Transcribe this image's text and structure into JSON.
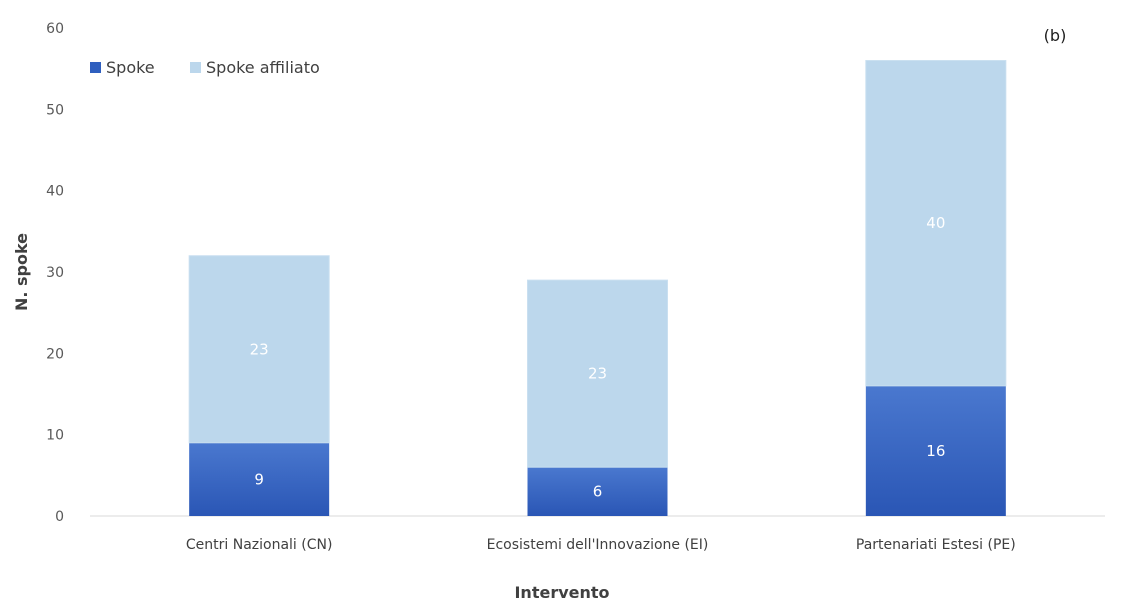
{
  "chart_data": {
    "type": "bar",
    "stacked": true,
    "panel_label": "(b)",
    "xlabel": "Intervento",
    "ylabel": "N. spoke",
    "ylim": [
      0,
      60
    ],
    "yticks": [
      0,
      10,
      20,
      30,
      40,
      50,
      60
    ],
    "categories": [
      "Centri Nazionali (CN)",
      "Ecosistemi dell'Innovazione (EI)",
      "Partenariati Estesi (PE)"
    ],
    "series": [
      {
        "name": "Spoke",
        "values": [
          9,
          6,
          16
        ],
        "color": "#2f5fbf"
      },
      {
        "name": "Spoke affiliato",
        "values": [
          23,
          23,
          40
        ],
        "color": "#bcd7ec"
      }
    ],
    "grid": false,
    "legend": "top-left"
  }
}
